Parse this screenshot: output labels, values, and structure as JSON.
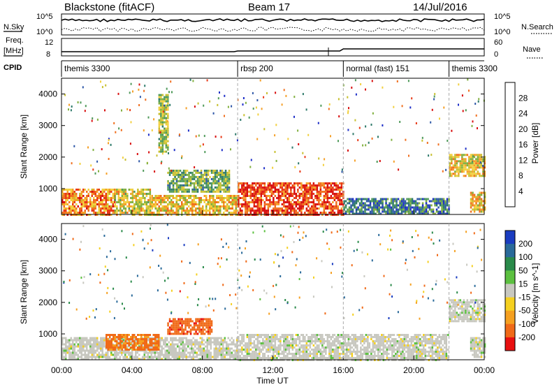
{
  "header": {
    "title": "Blackstone (fitACF)",
    "beam": "Beam 17",
    "date": "14/Jul/2016"
  },
  "status_panels": {
    "nsky_label": "N.Sky",
    "nsearch_label": "N.Search",
    "count_ticks": [
      "10^5",
      "10^0"
    ],
    "freq_label_line1": "Freq.",
    "freq_label_line2": "[MHz]",
    "freq_ticks": [
      "12",
      "8"
    ],
    "nave_label": "Nave",
    "nave_ticks": [
      "60",
      "0"
    ],
    "cpid_label": "CPID"
  },
  "chart_data": [
    {
      "type": "timeline",
      "title": "CPID",
      "segments": [
        {
          "label": "themis 3300",
          "start_h": 0.0,
          "end_h": 10.0
        },
        {
          "label": "rbsp 200",
          "start_h": 10.0,
          "end_h": 16.0
        },
        {
          "label": "normal (fast) 151",
          "start_h": 16.0,
          "end_h": 22.0
        },
        {
          "label": "themis 3300",
          "start_h": 22.0,
          "end_h": 24.0
        }
      ],
      "mode_change_hours": [
        10.0,
        16.0,
        22.0
      ]
    },
    {
      "type": "heatmap",
      "name": "power",
      "ylabel": "Slant Range [km]",
      "yticks": [
        "1000",
        "2000",
        "3000",
        "4000"
      ],
      "ylim": [
        180,
        4500
      ],
      "xlim": [
        0,
        24
      ],
      "colorbar": {
        "label": "Power [dB]",
        "ticks": [
          "4",
          "8",
          "12",
          "16",
          "20",
          "24",
          "28"
        ],
        "colors": [
          "#1e2fc8",
          "#2f58a8",
          "#2e7a6a",
          "#4f9a5a",
          "#82b040",
          "#c8c030",
          "#f2d040",
          "#f5a028",
          "#f07020",
          "#e83a18",
          "#d81010"
        ]
      },
      "regions": [
        {
          "t0": 0.0,
          "t1": 3.0,
          "r0": 200,
          "r1": 1000,
          "level": 0.75
        },
        {
          "t0": 3.0,
          "t1": 5.0,
          "r0": 200,
          "r1": 1000,
          "level": 0.55
        },
        {
          "t0": 5.0,
          "t1": 10.0,
          "r0": 200,
          "r1": 800,
          "level": 0.6
        },
        {
          "t0": 10.0,
          "t1": 16.0,
          "r0": 200,
          "r1": 1200,
          "level": 0.9
        },
        {
          "t0": 16.0,
          "t1": 22.0,
          "r0": 200,
          "r1": 700,
          "level": 0.2
        },
        {
          "t0": 22.0,
          "t1": 24.0,
          "r0": 1400,
          "r1": 2100,
          "level": 0.6
        },
        {
          "t0": 23.2,
          "t1": 24.0,
          "r0": 300,
          "r1": 900,
          "level": 0.6
        },
        {
          "t0": 5.5,
          "t1": 6.0,
          "r0": 2200,
          "r1": 4000,
          "level": 0.45
        },
        {
          "t0": 6.0,
          "t1": 9.5,
          "r0": 900,
          "r1": 1600,
          "level": 0.35
        }
      ]
    },
    {
      "type": "heatmap",
      "name": "velocity",
      "ylabel": "Slant Range [km]",
      "yticks": [
        "1000",
        "2000",
        "3000",
        "4000"
      ],
      "ylim": [
        180,
        4500
      ],
      "xlim": [
        0,
        24
      ],
      "xticks": [
        "00:00",
        "04:00",
        "08:00",
        "12:00",
        "16:00",
        "20:00",
        "00:00"
      ],
      "xlabel": "Time UT",
      "colorbar": {
        "label": "Velocity [m s^-1]",
        "ticks": [
          "200",
          "100",
          "50",
          "15",
          "-15",
          "-50",
          "-100",
          "-200"
        ],
        "colors": [
          "#1a3cc0",
          "#2a6a9a",
          "#2a8a4a",
          "#5cc040",
          "#c8c8c0",
          "#f5d020",
          "#f5a020",
          "#f06a18",
          "#e81010"
        ]
      },
      "regions": [
        {
          "t0": 0.0,
          "t1": 10.0,
          "r0": 200,
          "r1": 900,
          "value": 0
        },
        {
          "t0": 2.5,
          "t1": 5.5,
          "r0": 500,
          "r1": 1000,
          "value": -120
        },
        {
          "t0": 6.0,
          "t1": 8.5,
          "r0": 1000,
          "r1": 1500,
          "value": -150
        },
        {
          "t0": 10.0,
          "t1": 22.0,
          "r0": 200,
          "r1": 1000,
          "value": 0
        },
        {
          "t0": 22.0,
          "t1": 24.0,
          "r0": 1400,
          "r1": 2100,
          "value": 0
        },
        {
          "t0": 23.2,
          "t1": 24.0,
          "r0": 300,
          "r1": 900,
          "value": 0
        }
      ]
    }
  ]
}
